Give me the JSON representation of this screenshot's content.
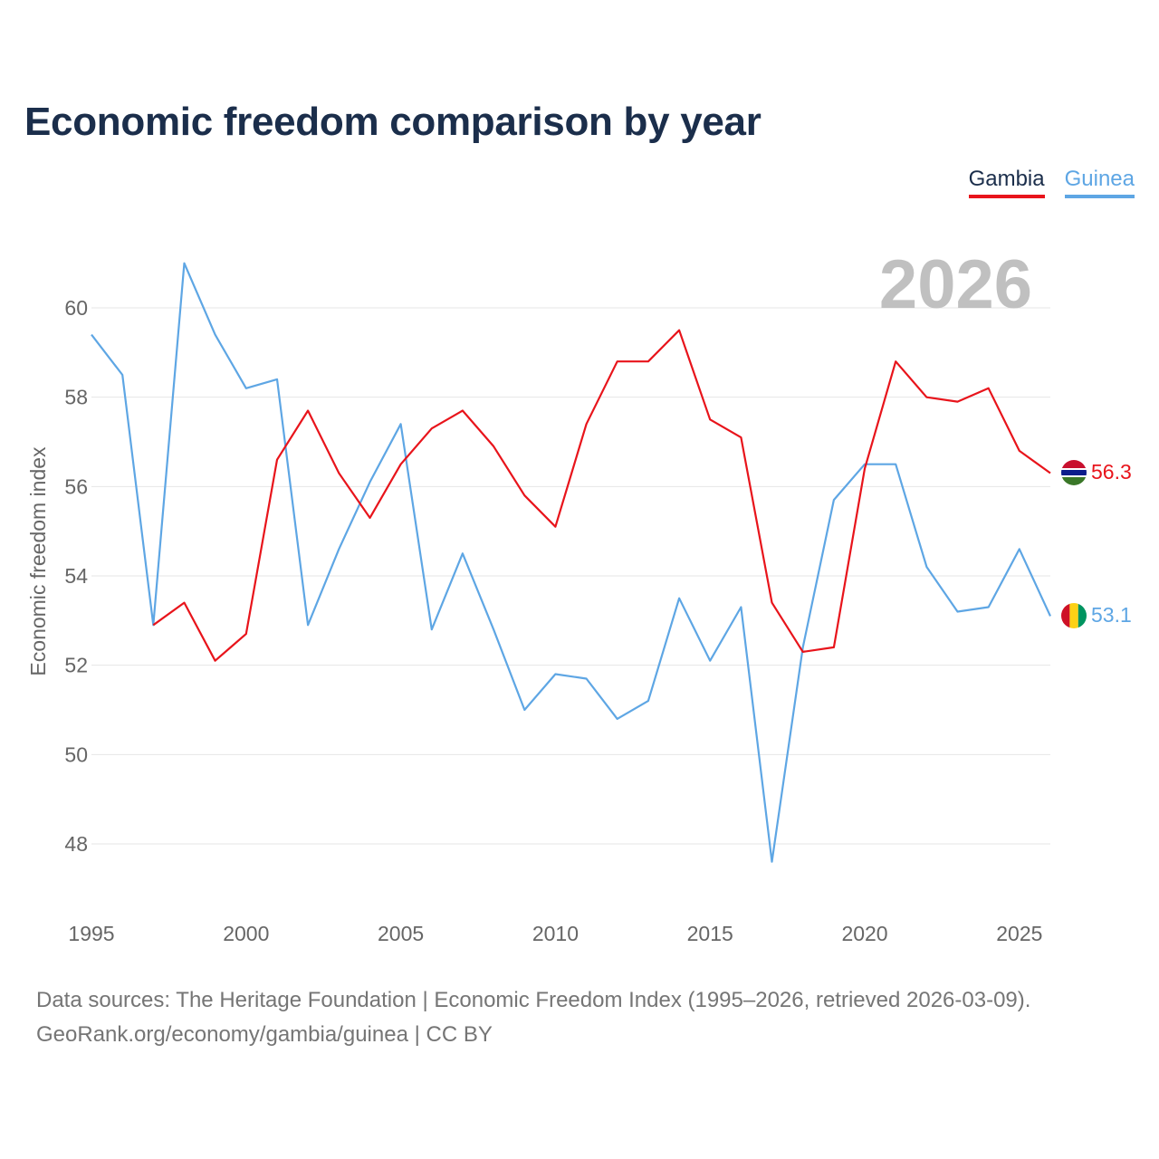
{
  "title": "Economic freedom comparison by year",
  "year_label": "2026",
  "legend": [
    {
      "name": "Gambia",
      "color": "#e8141b"
    },
    {
      "name": "Guinea",
      "color": "#5ea6e4"
    }
  ],
  "footer": {
    "line1": "Data sources: The Heritage Foundation | Economic Freedom Index (1995–2026, retrieved 2026-03-09).",
    "line2": "GeoRank.org/economy/gambia/guinea | CC BY"
  },
  "chart_data": {
    "type": "line",
    "title": "Economic freedom comparison by year",
    "xlabel": "",
    "ylabel": "Economic freedom index",
    "xlim": [
      1995,
      2026
    ],
    "ylim": [
      47,
      61.5
    ],
    "x_ticks": [
      1995,
      2000,
      2005,
      2010,
      2015,
      2020,
      2025
    ],
    "y_ticks": [
      48,
      50,
      52,
      54,
      56,
      58,
      60
    ],
    "grid": true,
    "legend_position": "top-right",
    "x": [
      1995,
      1996,
      1997,
      1998,
      1999,
      2000,
      2001,
      2002,
      2003,
      2004,
      2005,
      2006,
      2007,
      2008,
      2009,
      2010,
      2011,
      2012,
      2013,
      2014,
      2015,
      2016,
      2017,
      2018,
      2019,
      2020,
      2021,
      2022,
      2023,
      2024,
      2025,
      2026
    ],
    "series": [
      {
        "name": "Gambia",
        "color": "#e8141b",
        "end_label": "56.3",
        "values": [
          null,
          null,
          52.9,
          53.4,
          52.1,
          52.7,
          56.6,
          57.7,
          56.3,
          55.3,
          56.5,
          57.3,
          57.7,
          56.9,
          55.8,
          55.1,
          57.4,
          58.8,
          58.8,
          59.5,
          57.5,
          57.1,
          53.4,
          52.3,
          52.4,
          56.4,
          58.8,
          58.0,
          57.9,
          58.2,
          56.8,
          56.3
        ]
      },
      {
        "name": "Guinea",
        "color": "#5ea6e4",
        "end_label": "53.1",
        "values": [
          59.4,
          58.5,
          52.9,
          61.0,
          59.4,
          58.2,
          58.4,
          52.9,
          54.6,
          56.1,
          57.4,
          52.8,
          54.5,
          52.8,
          51.0,
          51.8,
          51.7,
          50.8,
          51.2,
          53.5,
          52.1,
          53.3,
          47.6,
          52.4,
          55.7,
          56.5,
          56.5,
          54.2,
          53.2,
          53.3,
          54.6,
          53.1
        ]
      }
    ]
  }
}
